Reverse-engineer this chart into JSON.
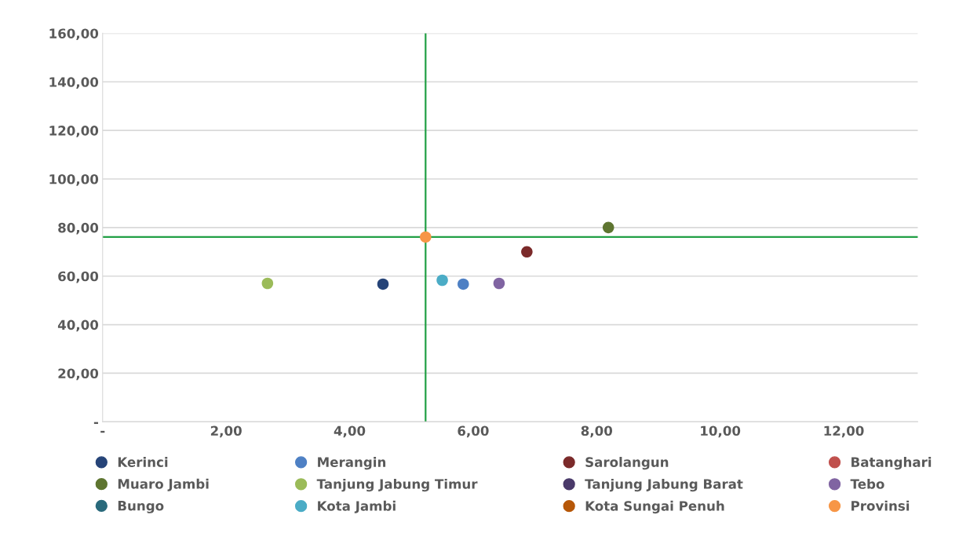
{
  "chart_data": {
    "type": "scatter",
    "series": [
      {
        "name": "Kerinci",
        "color": "#264478",
        "x": [
          4.54
        ],
        "values": [
          56.7
        ]
      },
      {
        "name": "Merangin",
        "color": "#4e80c4",
        "x": [
          5.84
        ],
        "values": [
          56.7
        ]
      },
      {
        "name": "Sarolangun",
        "color": "#7b2a2a",
        "x": [
          6.87
        ],
        "values": [
          70.0
        ]
      },
      {
        "name": "Batanghari",
        "color": "#c0504d",
        "x": [
          null
        ],
        "values": [
          null
        ]
      },
      {
        "name": "Muaro Jambi",
        "color": "#5e7530",
        "x": [
          8.19
        ],
        "values": [
          80.0
        ]
      },
      {
        "name": "Tanjung Jabung Timur",
        "color": "#9bbb59",
        "x": [
          2.67
        ],
        "values": [
          57.0
        ]
      },
      {
        "name": "Tanjung Jabung Barat",
        "color": "#4a3a6a",
        "x": [
          null
        ],
        "values": [
          null
        ]
      },
      {
        "name": "Tebo",
        "color": "#8064a2",
        "x": [
          6.42
        ],
        "values": [
          57.0
        ]
      },
      {
        "name": "Bungo",
        "color": "#2a6a7c",
        "x": [
          null
        ],
        "values": [
          null
        ]
      },
      {
        "name": "Kota Jambi",
        "color": "#4bacc6",
        "x": [
          5.5
        ],
        "values": [
          58.3
        ]
      },
      {
        "name": "Kota Sungai Penuh",
        "color": "#b65708",
        "x": [
          null
        ],
        "values": [
          null
        ]
      },
      {
        "name": "Provinsi",
        "color": "#f79646",
        "x": [
          5.23
        ],
        "values": [
          76.1
        ]
      }
    ],
    "xlim": [
      0,
      13.2
    ],
    "xticks": [
      {
        "value": 0,
        "label": "-"
      },
      {
        "value": 2,
        "label": "2,00"
      },
      {
        "value": 4,
        "label": "4,00"
      },
      {
        "value": 6,
        "label": "6,00"
      },
      {
        "value": 8,
        "label": "8,00"
      },
      {
        "value": 10,
        "label": "10,00"
      },
      {
        "value": 12,
        "label": "12,00"
      }
    ],
    "ylim": [
      0,
      160
    ],
    "yticks": [
      {
        "value": 0,
        "label": "-"
      },
      {
        "value": 20,
        "label": "20,00"
      },
      {
        "value": 40,
        "label": "40,00"
      },
      {
        "value": 60,
        "label": "60,00"
      },
      {
        "value": 80,
        "label": "80,00"
      },
      {
        "value": 100,
        "label": "100,00"
      },
      {
        "value": 120,
        "label": "120,00"
      },
      {
        "value": 140,
        "label": "140,00"
      },
      {
        "value": 160,
        "label": "160,00"
      }
    ],
    "ref_lines": [
      {
        "axis": "x",
        "value": 5.23,
        "color": "#22a045"
      },
      {
        "axis": "y",
        "value": 76.1,
        "color": "#22a045"
      }
    ],
    "grid": "y",
    "legend": "bottom",
    "marker": "circle"
  }
}
